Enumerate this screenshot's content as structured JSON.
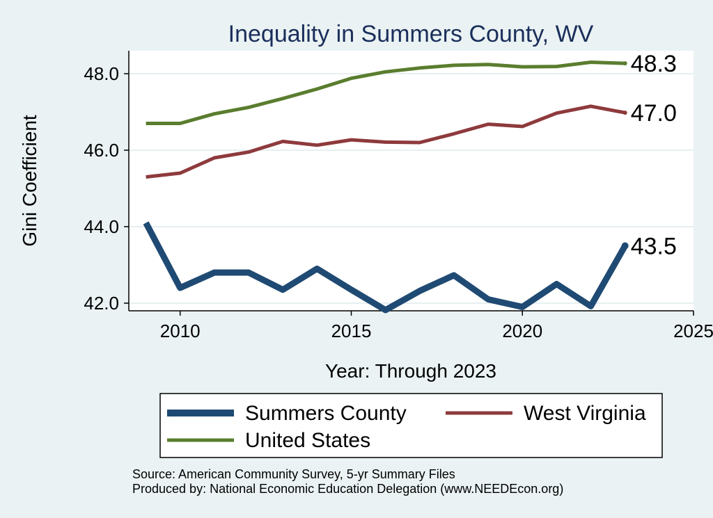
{
  "chart_data": {
    "type": "line",
    "title": "Inequality in Summers County, WV",
    "xlabel": "Year: Through 2023",
    "ylabel": "Gini Coefficient",
    "xlim": [
      2008.5,
      2025
    ],
    "ylim": [
      41.8,
      48.6
    ],
    "xticks": [
      2010,
      2015,
      2020,
      2025
    ],
    "yticks": [
      42.0,
      44.0,
      46.0,
      48.0
    ],
    "ytick_labels": [
      "42.0",
      "44.0",
      "46.0",
      "48.0"
    ],
    "grid": true,
    "legend_position": "bottom",
    "x": [
      2009,
      2010,
      2011,
      2012,
      2013,
      2014,
      2015,
      2016,
      2017,
      2018,
      2019,
      2020,
      2021,
      2022,
      2023
    ],
    "series": [
      {
        "name": "Summers County",
        "color": "#1f4a73",
        "end_label": "43.5",
        "values": [
          44.1,
          42.4,
          42.8,
          42.8,
          42.35,
          42.9,
          42.35,
          41.82,
          42.32,
          42.73,
          42.1,
          41.9,
          42.5,
          41.92,
          43.5
        ]
      },
      {
        "name": "West Virginia",
        "color": "#8e3a3d",
        "end_label": "47.0",
        "values": [
          45.3,
          45.4,
          45.8,
          45.95,
          46.23,
          46.13,
          46.27,
          46.21,
          46.2,
          46.43,
          46.68,
          46.62,
          46.97,
          47.15,
          46.98
        ]
      },
      {
        "name": "United States",
        "color": "#5a7d2e",
        "end_label": "48.3",
        "values": [
          46.7,
          46.7,
          46.95,
          47.12,
          47.35,
          47.6,
          47.88,
          48.05,
          48.15,
          48.22,
          48.24,
          48.18,
          48.19,
          48.3,
          48.27
        ]
      }
    ]
  },
  "notes": [
    "Source: American Community Survey, 5-yr Summary Files",
    "Produced by: National Economic Education Delegation (www.NEEDEcon.org)"
  ]
}
